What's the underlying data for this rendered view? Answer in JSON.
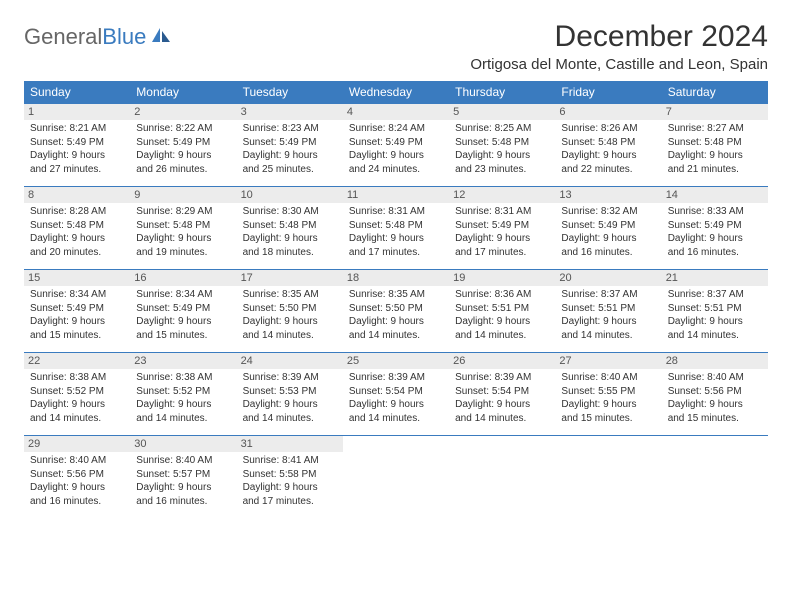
{
  "logo": {
    "text1": "General",
    "text2": "Blue"
  },
  "title": "December 2024",
  "location": "Ortigosa del Monte, Castille and Leon, Spain",
  "colors": {
    "header_bg": "#3a7bbf",
    "daynum_bg": "#ececec",
    "border": "#3a7bbf"
  },
  "dayNames": [
    "Sunday",
    "Monday",
    "Tuesday",
    "Wednesday",
    "Thursday",
    "Friday",
    "Saturday"
  ],
  "weeks": [
    [
      {
        "num": "1",
        "sunrise": "Sunrise: 8:21 AM",
        "sunset": "Sunset: 5:49 PM",
        "day1": "Daylight: 9 hours",
        "day2": "and 27 minutes."
      },
      {
        "num": "2",
        "sunrise": "Sunrise: 8:22 AM",
        "sunset": "Sunset: 5:49 PM",
        "day1": "Daylight: 9 hours",
        "day2": "and 26 minutes."
      },
      {
        "num": "3",
        "sunrise": "Sunrise: 8:23 AM",
        "sunset": "Sunset: 5:49 PM",
        "day1": "Daylight: 9 hours",
        "day2": "and 25 minutes."
      },
      {
        "num": "4",
        "sunrise": "Sunrise: 8:24 AM",
        "sunset": "Sunset: 5:49 PM",
        "day1": "Daylight: 9 hours",
        "day2": "and 24 minutes."
      },
      {
        "num": "5",
        "sunrise": "Sunrise: 8:25 AM",
        "sunset": "Sunset: 5:48 PM",
        "day1": "Daylight: 9 hours",
        "day2": "and 23 minutes."
      },
      {
        "num": "6",
        "sunrise": "Sunrise: 8:26 AM",
        "sunset": "Sunset: 5:48 PM",
        "day1": "Daylight: 9 hours",
        "day2": "and 22 minutes."
      },
      {
        "num": "7",
        "sunrise": "Sunrise: 8:27 AM",
        "sunset": "Sunset: 5:48 PM",
        "day1": "Daylight: 9 hours",
        "day2": "and 21 minutes."
      }
    ],
    [
      {
        "num": "8",
        "sunrise": "Sunrise: 8:28 AM",
        "sunset": "Sunset: 5:48 PM",
        "day1": "Daylight: 9 hours",
        "day2": "and 20 minutes."
      },
      {
        "num": "9",
        "sunrise": "Sunrise: 8:29 AM",
        "sunset": "Sunset: 5:48 PM",
        "day1": "Daylight: 9 hours",
        "day2": "and 19 minutes."
      },
      {
        "num": "10",
        "sunrise": "Sunrise: 8:30 AM",
        "sunset": "Sunset: 5:48 PM",
        "day1": "Daylight: 9 hours",
        "day2": "and 18 minutes."
      },
      {
        "num": "11",
        "sunrise": "Sunrise: 8:31 AM",
        "sunset": "Sunset: 5:48 PM",
        "day1": "Daylight: 9 hours",
        "day2": "and 17 minutes."
      },
      {
        "num": "12",
        "sunrise": "Sunrise: 8:31 AM",
        "sunset": "Sunset: 5:49 PM",
        "day1": "Daylight: 9 hours",
        "day2": "and 17 minutes."
      },
      {
        "num": "13",
        "sunrise": "Sunrise: 8:32 AM",
        "sunset": "Sunset: 5:49 PM",
        "day1": "Daylight: 9 hours",
        "day2": "and 16 minutes."
      },
      {
        "num": "14",
        "sunrise": "Sunrise: 8:33 AM",
        "sunset": "Sunset: 5:49 PM",
        "day1": "Daylight: 9 hours",
        "day2": "and 16 minutes."
      }
    ],
    [
      {
        "num": "15",
        "sunrise": "Sunrise: 8:34 AM",
        "sunset": "Sunset: 5:49 PM",
        "day1": "Daylight: 9 hours",
        "day2": "and 15 minutes."
      },
      {
        "num": "16",
        "sunrise": "Sunrise: 8:34 AM",
        "sunset": "Sunset: 5:49 PM",
        "day1": "Daylight: 9 hours",
        "day2": "and 15 minutes."
      },
      {
        "num": "17",
        "sunrise": "Sunrise: 8:35 AM",
        "sunset": "Sunset: 5:50 PM",
        "day1": "Daylight: 9 hours",
        "day2": "and 14 minutes."
      },
      {
        "num": "18",
        "sunrise": "Sunrise: 8:35 AM",
        "sunset": "Sunset: 5:50 PM",
        "day1": "Daylight: 9 hours",
        "day2": "and 14 minutes."
      },
      {
        "num": "19",
        "sunrise": "Sunrise: 8:36 AM",
        "sunset": "Sunset: 5:51 PM",
        "day1": "Daylight: 9 hours",
        "day2": "and 14 minutes."
      },
      {
        "num": "20",
        "sunrise": "Sunrise: 8:37 AM",
        "sunset": "Sunset: 5:51 PM",
        "day1": "Daylight: 9 hours",
        "day2": "and 14 minutes."
      },
      {
        "num": "21",
        "sunrise": "Sunrise: 8:37 AM",
        "sunset": "Sunset: 5:51 PM",
        "day1": "Daylight: 9 hours",
        "day2": "and 14 minutes."
      }
    ],
    [
      {
        "num": "22",
        "sunrise": "Sunrise: 8:38 AM",
        "sunset": "Sunset: 5:52 PM",
        "day1": "Daylight: 9 hours",
        "day2": "and 14 minutes."
      },
      {
        "num": "23",
        "sunrise": "Sunrise: 8:38 AM",
        "sunset": "Sunset: 5:52 PM",
        "day1": "Daylight: 9 hours",
        "day2": "and 14 minutes."
      },
      {
        "num": "24",
        "sunrise": "Sunrise: 8:39 AM",
        "sunset": "Sunset: 5:53 PM",
        "day1": "Daylight: 9 hours",
        "day2": "and 14 minutes."
      },
      {
        "num": "25",
        "sunrise": "Sunrise: 8:39 AM",
        "sunset": "Sunset: 5:54 PM",
        "day1": "Daylight: 9 hours",
        "day2": "and 14 minutes."
      },
      {
        "num": "26",
        "sunrise": "Sunrise: 8:39 AM",
        "sunset": "Sunset: 5:54 PM",
        "day1": "Daylight: 9 hours",
        "day2": "and 14 minutes."
      },
      {
        "num": "27",
        "sunrise": "Sunrise: 8:40 AM",
        "sunset": "Sunset: 5:55 PM",
        "day1": "Daylight: 9 hours",
        "day2": "and 15 minutes."
      },
      {
        "num": "28",
        "sunrise": "Sunrise: 8:40 AM",
        "sunset": "Sunset: 5:56 PM",
        "day1": "Daylight: 9 hours",
        "day2": "and 15 minutes."
      }
    ],
    [
      {
        "num": "29",
        "sunrise": "Sunrise: 8:40 AM",
        "sunset": "Sunset: 5:56 PM",
        "day1": "Daylight: 9 hours",
        "day2": "and 16 minutes."
      },
      {
        "num": "30",
        "sunrise": "Sunrise: 8:40 AM",
        "sunset": "Sunset: 5:57 PM",
        "day1": "Daylight: 9 hours",
        "day2": "and 16 minutes."
      },
      {
        "num": "31",
        "sunrise": "Sunrise: 8:41 AM",
        "sunset": "Sunset: 5:58 PM",
        "day1": "Daylight: 9 hours",
        "day2": "and 17 minutes."
      },
      null,
      null,
      null,
      null
    ]
  ]
}
